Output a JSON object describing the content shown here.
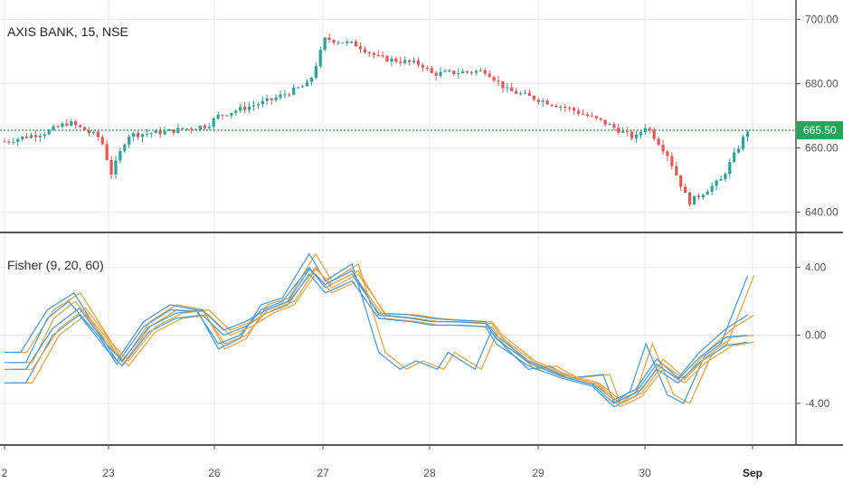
{
  "price_pane": {
    "legend": "AXIS BANK, 15, NSE",
    "last_price_label": "665.50",
    "y_ticks": [
      {
        "value": 700,
        "label": "700.00"
      },
      {
        "value": 680,
        "label": "680.00"
      },
      {
        "value": 660,
        "label": "660.00"
      },
      {
        "value": 640,
        "label": "640.00"
      }
    ]
  },
  "indicator_pane": {
    "legend": "Fisher (9, 20, 60)",
    "y_ticks": [
      {
        "value": 4,
        "label": "4.00"
      },
      {
        "value": 0,
        "label": "0.00"
      },
      {
        "value": -4,
        "label": "-4.00"
      }
    ]
  },
  "x_axis": {
    "ticks": [
      {
        "label": "2",
        "bold": false
      },
      {
        "label": "23",
        "bold": false
      },
      {
        "label": "26",
        "bold": false
      },
      {
        "label": "27",
        "bold": false
      },
      {
        "label": "28",
        "bold": false
      },
      {
        "label": "29",
        "bold": false
      },
      {
        "label": "30",
        "bold": false
      },
      {
        "label": "Sep",
        "bold": true
      }
    ]
  },
  "colors": {
    "up": "#26a69a",
    "down": "#ef5350",
    "price_line": "#26a65b",
    "fisher_blue": "#3c9ae8",
    "fisher_orange": "#f0a030",
    "grid": "#e6e9ee",
    "pane_border": "#555555"
  },
  "chart_data": [
    {
      "type": "candlestick",
      "title": "AXIS BANK, 15, NSE",
      "ylim": [
        634,
        706
      ],
      "y_ticks": [
        640,
        660,
        680,
        700
      ],
      "last_price": 665.5,
      "grid": true,
      "note_keypoints": [
        {
          "t": 0.0,
          "price": 662
        },
        {
          "t": 0.4,
          "price": 665
        },
        {
          "t": 0.6,
          "price": 668
        },
        {
          "t": 0.9,
          "price": 663
        },
        {
          "t": 1.0,
          "price": 652
        },
        {
          "t": 1.15,
          "price": 664
        },
        {
          "t": 1.5,
          "price": 665
        },
        {
          "t": 1.9,
          "price": 667
        },
        {
          "t": 2.0,
          "price": 670
        },
        {
          "t": 2.5,
          "price": 675
        },
        {
          "t": 2.85,
          "price": 680
        },
        {
          "t": 3.0,
          "price": 694
        },
        {
          "t": 3.3,
          "price": 692
        },
        {
          "t": 3.5,
          "price": 688
        },
        {
          "t": 3.9,
          "price": 686
        },
        {
          "t": 4.0,
          "price": 683
        },
        {
          "t": 4.5,
          "price": 684
        },
        {
          "t": 4.7,
          "price": 678
        },
        {
          "t": 5.0,
          "price": 675
        },
        {
          "t": 5.3,
          "price": 672
        },
        {
          "t": 5.6,
          "price": 668
        },
        {
          "t": 5.9,
          "price": 663
        },
        {
          "t": 6.0,
          "price": 667
        },
        {
          "t": 6.2,
          "price": 658
        },
        {
          "t": 6.4,
          "price": 643
        },
        {
          "t": 6.7,
          "price": 650
        },
        {
          "t": 6.95,
          "price": 665.5
        }
      ]
    },
    {
      "type": "line",
      "title": "Fisher (9, 20, 60)",
      "ylim": [
        -6.4,
        6.0
      ],
      "y_ticks": [
        -4,
        0,
        4
      ],
      "grid": true,
      "series": [
        {
          "color": "blue",
          "offset": 0.0,
          "values": [
            [
              0.0,
              -1.0
            ],
            [
              0.15,
              -1.0
            ],
            [
              0.4,
              1.5
            ],
            [
              0.65,
              2.5
            ],
            [
              0.9,
              0.0
            ],
            [
              1.05,
              -1.5
            ],
            [
              1.3,
              0.8
            ],
            [
              1.55,
              1.8
            ],
            [
              1.8,
              1.5
            ],
            [
              2.0,
              -0.8
            ],
            [
              2.2,
              -0.2
            ],
            [
              2.4,
              1.8
            ],
            [
              2.6,
              2.2
            ],
            [
              2.85,
              4.8
            ],
            [
              3.0,
              3.2
            ],
            [
              3.25,
              4.2
            ],
            [
              3.5,
              -1.0
            ],
            [
              3.7,
              -2.0
            ],
            [
              3.85,
              -1.5
            ],
            [
              4.05,
              -2.0
            ],
            [
              4.15,
              -1.0
            ],
            [
              4.4,
              -2.0
            ],
            [
              4.55,
              0.2
            ],
            [
              4.7,
              -0.8
            ],
            [
              4.9,
              -2.0
            ],
            [
              5.1,
              -1.8
            ],
            [
              5.3,
              -2.5
            ],
            [
              5.6,
              -2.3
            ],
            [
              5.7,
              -4.0
            ],
            [
              5.85,
              -3.3
            ],
            [
              6.0,
              -0.5
            ],
            [
              6.2,
              -3.5
            ],
            [
              6.35,
              -4.0
            ],
            [
              6.55,
              -1.2
            ],
            [
              6.7,
              -0.5
            ],
            [
              6.95,
              3.5
            ]
          ]
        },
        {
          "color": "blue",
          "offset": 0.0,
          "values": [
            [
              0.0,
              -1.6
            ],
            [
              0.2,
              -1.6
            ],
            [
              0.4,
              1.0
            ],
            [
              0.6,
              2.0
            ],
            [
              0.9,
              -0.2
            ],
            [
              1.05,
              -1.7
            ],
            [
              1.3,
              0.5
            ],
            [
              1.55,
              1.5
            ],
            [
              1.8,
              1.4
            ],
            [
              2.0,
              -0.5
            ],
            [
              2.2,
              0.0
            ],
            [
              2.4,
              1.5
            ],
            [
              2.6,
              2.0
            ],
            [
              2.85,
              4.0
            ],
            [
              3.0,
              2.8
            ],
            [
              3.25,
              3.6
            ],
            [
              3.5,
              1.3
            ],
            [
              3.8,
              1.2
            ],
            [
              4.0,
              1.0
            ],
            [
              4.2,
              0.9
            ],
            [
              4.5,
              0.8
            ],
            [
              4.6,
              0.0
            ],
            [
              4.9,
              -1.5
            ],
            [
              5.2,
              -2.3
            ],
            [
              5.5,
              -2.8
            ],
            [
              5.7,
              -3.8
            ],
            [
              5.9,
              -3.2
            ],
            [
              6.1,
              -1.4
            ],
            [
              6.3,
              -2.5
            ],
            [
              6.5,
              -1.0
            ],
            [
              6.75,
              0.4
            ],
            [
              6.95,
              1.2
            ]
          ]
        },
        {
          "color": "blue",
          "offset": 0.0,
          "values": [
            [
              0.0,
              -2.8
            ],
            [
              0.2,
              -2.8
            ],
            [
              0.45,
              0.0
            ],
            [
              0.7,
              1.2
            ],
            [
              0.95,
              -0.8
            ],
            [
              1.1,
              -1.8
            ],
            [
              1.35,
              0.2
            ],
            [
              1.6,
              1.0
            ],
            [
              1.85,
              1.2
            ],
            [
              2.05,
              0.0
            ],
            [
              2.25,
              0.5
            ],
            [
              2.45,
              1.3
            ],
            [
              2.65,
              1.8
            ],
            [
              2.85,
              3.6
            ],
            [
              3.0,
              2.5
            ],
            [
              3.25,
              3.2
            ],
            [
              3.5,
              1.0
            ],
            [
              3.8,
              0.8
            ],
            [
              4.0,
              0.6
            ],
            [
              4.2,
              0.6
            ],
            [
              4.5,
              0.5
            ],
            [
              4.6,
              -0.5
            ],
            [
              4.9,
              -1.8
            ],
            [
              5.2,
              -2.5
            ],
            [
              5.5,
              -3.0
            ],
            [
              5.7,
              -4.2
            ],
            [
              5.9,
              -3.6
            ],
            [
              6.1,
              -2.0
            ],
            [
              6.3,
              -2.8
            ],
            [
              6.5,
              -1.6
            ],
            [
              6.75,
              -0.6
            ],
            [
              6.95,
              -0.4
            ]
          ]
        },
        {
          "color": "blue",
          "offset": 0.0,
          "values": [
            [
              0.0,
              -2.0
            ],
            [
              0.2,
              -2.0
            ],
            [
              0.45,
              0.4
            ],
            [
              0.7,
              1.6
            ],
            [
              0.95,
              -0.5
            ],
            [
              1.1,
              -1.5
            ],
            [
              1.35,
              0.5
            ],
            [
              1.6,
              1.3
            ],
            [
              1.85,
              1.5
            ],
            [
              2.05,
              0.3
            ],
            [
              2.25,
              0.8
            ],
            [
              2.45,
              1.5
            ],
            [
              2.65,
              2.0
            ],
            [
              2.85,
              3.9
            ],
            [
              3.0,
              3.0
            ],
            [
              3.25,
              3.8
            ],
            [
              3.5,
              1.2
            ],
            [
              3.8,
              1.0
            ],
            [
              4.0,
              0.8
            ],
            [
              4.2,
              0.8
            ],
            [
              4.5,
              0.7
            ],
            [
              4.6,
              -0.2
            ],
            [
              4.9,
              -1.6
            ],
            [
              5.2,
              -2.4
            ],
            [
              5.5,
              -2.9
            ],
            [
              5.7,
              -4.0
            ],
            [
              5.9,
              -3.4
            ],
            [
              6.1,
              -1.7
            ],
            [
              6.3,
              -2.6
            ],
            [
              6.5,
              -1.3
            ],
            [
              6.75,
              -0.1
            ],
            [
              6.95,
              0.0
            ]
          ]
        }
      ],
      "signal_lag_note": "each blue line has an orange signal line lagging it"
    }
  ]
}
